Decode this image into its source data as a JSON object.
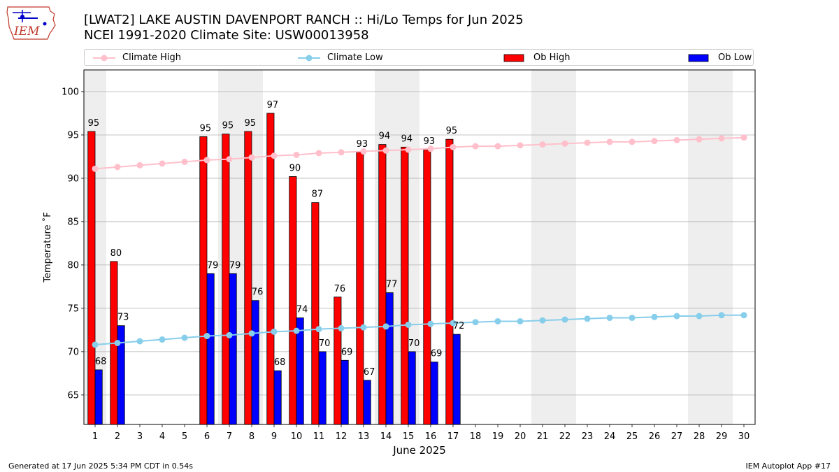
{
  "header": {
    "logo_text": "IEM",
    "title_line1": "[LWAT2] LAKE AUSTIN  DAVENPORT RANCH :: Hi/Lo Temps for Jun 2025",
    "title_line2": "NCEI 1991-2020 Climate Site: USW00013958"
  },
  "legend": {
    "climate_high": "Climate High",
    "climate_low": "Climate Low",
    "ob_high": "Ob High",
    "ob_low": "Ob Low"
  },
  "colors": {
    "climate_high": "#ffc0cb",
    "climate_low": "#87ceeb",
    "ob_high": "#ff0000",
    "ob_low": "#0000ff",
    "weekend_shade": "#eeeeee",
    "grid": "#b0b0b0"
  },
  "footer": {
    "left": "Generated at 17 Jun 2025 5:34 PM CDT in 0.54s",
    "right": "IEM Autoplot App #17"
  },
  "chart_data": {
    "type": "bar",
    "xlabel": "June 2025",
    "ylabel": "Temperature ˚F",
    "xlim": [
      0.5,
      30.5
    ],
    "ylim": [
      61.6,
      102.5
    ],
    "yticks": [
      65,
      70,
      75,
      80,
      85,
      90,
      95,
      100
    ],
    "x": [
      1,
      2,
      3,
      4,
      5,
      6,
      7,
      8,
      9,
      10,
      11,
      12,
      13,
      14,
      15,
      16,
      17,
      18,
      19,
      20,
      21,
      22,
      23,
      24,
      25,
      26,
      27,
      28,
      29,
      30
    ],
    "shaded_days": [
      [
        1,
        1
      ],
      [
        7,
        8
      ],
      [
        14,
        15
      ],
      [
        21,
        22
      ],
      [
        28,
        29
      ]
    ],
    "grid": true,
    "legend_position": "top",
    "series": [
      {
        "name": "Ob High",
        "kind": "bar",
        "x": [
          1,
          2,
          6,
          7,
          8,
          9,
          10,
          11,
          12,
          13,
          14,
          15,
          16,
          17
        ],
        "values": [
          95.4,
          80.4,
          94.8,
          95.1,
          95.4,
          97.5,
          90.2,
          87.2,
          76.3,
          93.0,
          93.9,
          93.6,
          93.3,
          94.5
        ],
        "labels": [
          "95",
          "80",
          "95",
          "95",
          "95",
          "97",
          "90",
          "87",
          "76",
          "93",
          "94",
          "94",
          "93",
          "95"
        ]
      },
      {
        "name": "Ob Low",
        "kind": "bar",
        "x": [
          1,
          2,
          6,
          7,
          8,
          9,
          10,
          11,
          12,
          13,
          14,
          15,
          16,
          17
        ],
        "values": [
          67.9,
          73.0,
          79.0,
          79.0,
          75.9,
          67.8,
          73.9,
          70.0,
          69.0,
          66.7,
          76.8,
          70.0,
          68.8,
          72.0
        ],
        "labels": [
          "68",
          "73",
          "79",
          "79",
          "76",
          "68",
          "74",
          "70",
          "69",
          "67",
          "77",
          "70",
          "69",
          "72"
        ]
      },
      {
        "name": "Climate High",
        "kind": "line",
        "values": [
          91.1,
          91.3,
          91.5,
          91.7,
          91.9,
          92.1,
          92.2,
          92.4,
          92.6,
          92.7,
          92.9,
          93.0,
          93.1,
          93.2,
          93.3,
          93.4,
          93.6,
          93.7,
          93.7,
          93.8,
          93.9,
          94.0,
          94.1,
          94.2,
          94.2,
          94.3,
          94.4,
          94.5,
          94.6,
          94.7
        ]
      },
      {
        "name": "Climate Low",
        "kind": "line",
        "values": [
          70.8,
          71.0,
          71.2,
          71.4,
          71.6,
          71.8,
          71.9,
          72.1,
          72.3,
          72.4,
          72.6,
          72.7,
          72.8,
          72.9,
          73.1,
          73.2,
          73.3,
          73.4,
          73.5,
          73.5,
          73.6,
          73.7,
          73.8,
          73.9,
          73.9,
          74.0,
          74.1,
          74.1,
          74.2,
          74.2
        ]
      }
    ]
  }
}
